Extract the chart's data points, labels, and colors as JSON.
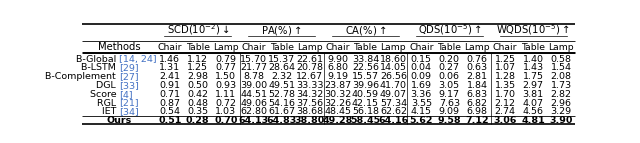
{
  "title_row": [
    "SCD(10$^{-2}$)$\\downarrow$",
    "PA(%)$\\uparrow$",
    "CA(%)$\\uparrow$",
    "QDS(10$^{-5}$)$\\uparrow$",
    "WQDS(10$^{-5}$)$\\uparrow$"
  ],
  "sub_cols": [
    "Chair",
    "Table",
    "Lamp"
  ],
  "methods": [
    "B-Global [14, 24]",
    "B-LSTM [29]",
    "B-Complement [27]",
    "DGL [33]",
    "Score [4]",
    "RGL [21]",
    "IET [34]",
    "Ours"
  ],
  "methods_plain": [
    "B-Global ",
    "B-LSTM ",
    "B-Complement ",
    "DGL ",
    "Score ",
    "RGL ",
    "IET ",
    "Ours"
  ],
  "methods_refs": [
    "[14, 24]",
    "[29]",
    "[27]",
    "[33]",
    "[4]",
    "[21]",
    "[34]",
    ""
  ],
  "methods_bold": [
    false,
    false,
    false,
    false,
    false,
    false,
    false,
    true
  ],
  "data": [
    [
      1.46,
      1.12,
      0.79,
      15.7,
      15.37,
      22.61,
      9.9,
      33.84,
      18.6,
      0.15,
      0.2,
      0.76,
      1.25,
      1.4,
      0.58
    ],
    [
      1.31,
      1.25,
      0.77,
      21.77,
      28.64,
      20.78,
      6.8,
      22.56,
      14.05,
      0.04,
      0.27,
      0.63,
      1.07,
      1.43,
      1.54
    ],
    [
      2.41,
      2.98,
      1.5,
      8.78,
      2.32,
      12.67,
      9.19,
      15.57,
      26.56,
      0.09,
      0.06,
      2.81,
      1.28,
      1.75,
      2.08
    ],
    [
      0.91,
      0.5,
      0.93,
      39.0,
      49.51,
      33.33,
      23.87,
      39.96,
      41.7,
      1.69,
      3.05,
      1.84,
      1.35,
      2.97,
      1.73
    ],
    [
      0.71,
      0.42,
      1.11,
      44.51,
      52.78,
      34.32,
      30.32,
      40.59,
      49.07,
      3.36,
      9.17,
      6.83,
      1.7,
      3.81,
      2.82
    ],
    [
      0.87,
      0.48,
      0.72,
      49.06,
      54.16,
      37.56,
      32.26,
      42.15,
      57.34,
      3.55,
      7.63,
      6.82,
      2.12,
      4.07,
      2.96
    ],
    [
      0.54,
      0.35,
      1.03,
      62.8,
      61.67,
      38.68,
      48.45,
      56.18,
      62.62,
      4.15,
      9.09,
      6.98,
      2.74,
      4.56,
      3.29
    ],
    [
      0.51,
      0.28,
      0.7,
      64.13,
      64.83,
      38.8,
      49.28,
      58.45,
      64.16,
      5.62,
      9.58,
      7.12,
      3.06,
      4.81,
      3.9
    ]
  ],
  "data_bold": [
    [
      false,
      false,
      false,
      false,
      false,
      false,
      false,
      false,
      false,
      false,
      false,
      false,
      false,
      false,
      false
    ],
    [
      false,
      false,
      false,
      false,
      false,
      false,
      false,
      false,
      false,
      false,
      false,
      false,
      false,
      false,
      false
    ],
    [
      false,
      false,
      false,
      false,
      false,
      false,
      false,
      false,
      false,
      false,
      false,
      false,
      false,
      false,
      false
    ],
    [
      false,
      false,
      false,
      false,
      false,
      false,
      false,
      false,
      false,
      false,
      false,
      false,
      false,
      false,
      false
    ],
    [
      false,
      false,
      false,
      false,
      false,
      false,
      false,
      false,
      false,
      false,
      false,
      false,
      false,
      false,
      false
    ],
    [
      false,
      false,
      false,
      false,
      false,
      false,
      false,
      false,
      false,
      false,
      false,
      false,
      false,
      false,
      false
    ],
    [
      false,
      false,
      false,
      false,
      false,
      false,
      false,
      false,
      false,
      false,
      false,
      false,
      false,
      false,
      false
    ],
    [
      true,
      true,
      true,
      true,
      true,
      true,
      true,
      true,
      true,
      true,
      true,
      true,
      true,
      true,
      true
    ]
  ],
  "ref_color": "#4472c4",
  "background_color": "#ffffff",
  "text_color": "#000000",
  "header_fontsize": 7.2,
  "data_fontsize": 6.8,
  "methods_fontsize": 6.8
}
